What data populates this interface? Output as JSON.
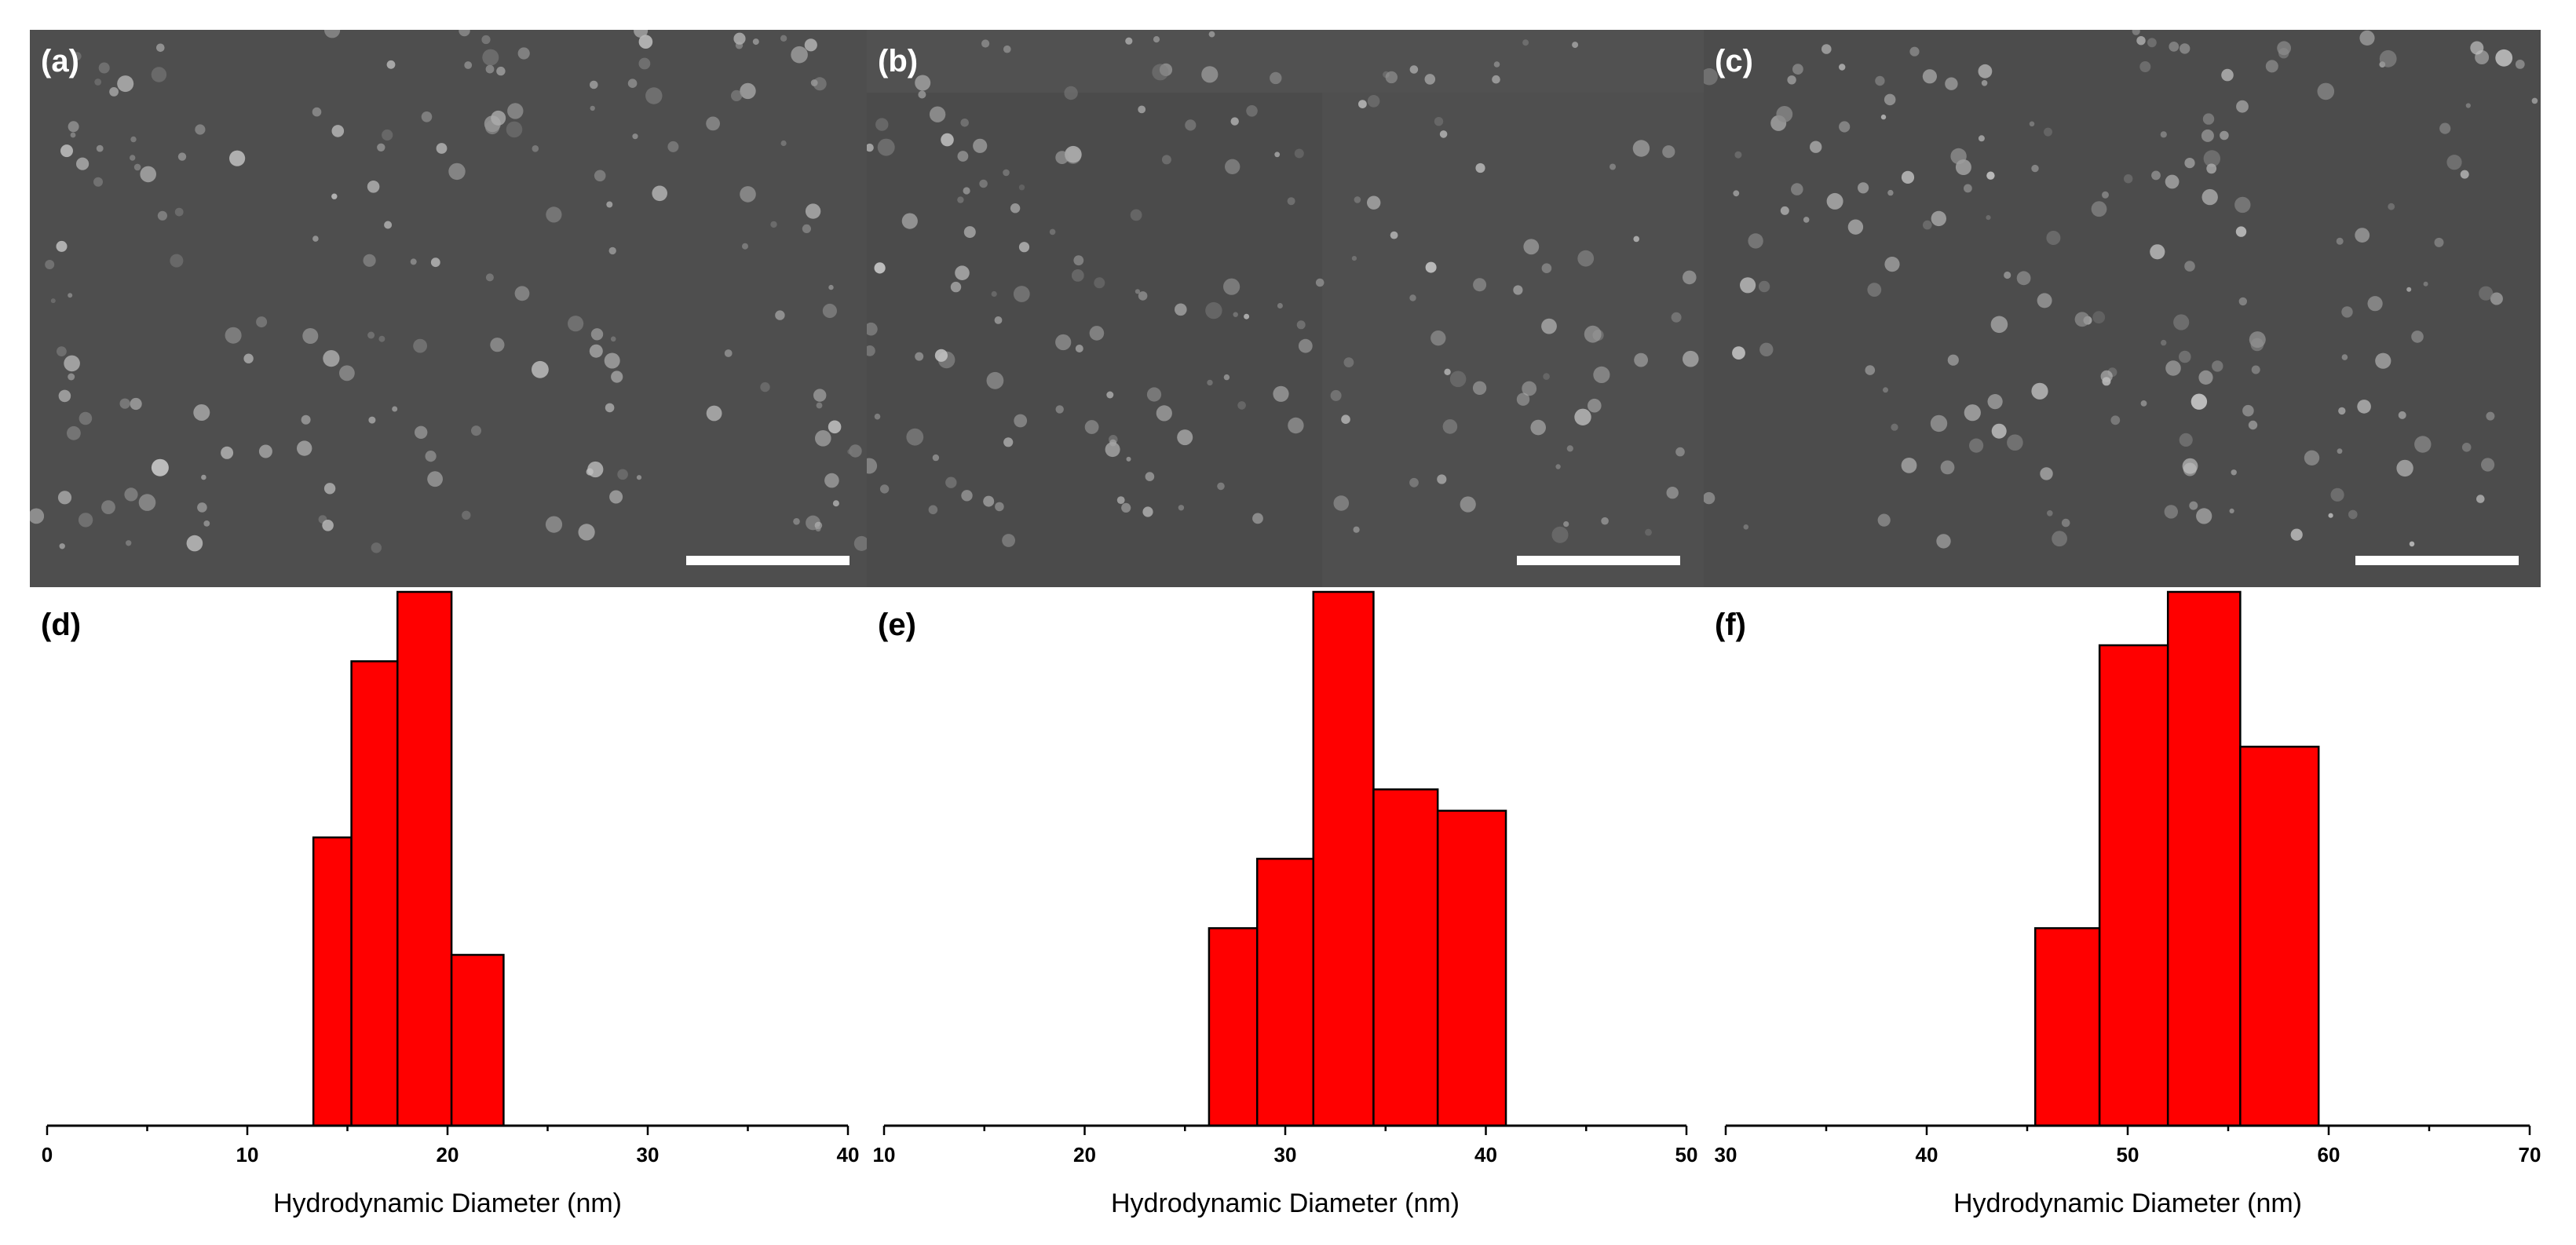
{
  "sem_panels": [
    {
      "label": "(a)"
    },
    {
      "label": "(b)"
    },
    {
      "label": "(c)"
    }
  ],
  "chart_data": [
    {
      "label": "(d)",
      "type": "bar",
      "xlabel": "Hydrodynamic Diameter (nm)",
      "xlim": [
        0,
        40
      ],
      "xticks": [
        "0",
        "10",
        "20",
        "30",
        "40"
      ],
      "bar_color": "#ff0000",
      "bins": [
        {
          "x0": 13.3,
          "x1": 15.2,
          "value": 0.54
        },
        {
          "x0": 15.2,
          "x1": 17.5,
          "value": 0.87
        },
        {
          "x0": 17.5,
          "x1": 20.2,
          "value": 1.0
        },
        {
          "x0": 20.2,
          "x1": 22.8,
          "value": 0.32
        }
      ]
    },
    {
      "label": "(e)",
      "type": "bar",
      "xlabel": "Hydrodynamic Diameter (nm)",
      "xlim": [
        10,
        50
      ],
      "xticks": [
        "10",
        "20",
        "30",
        "40",
        "50"
      ],
      "bar_color": "#ff0000",
      "bins": [
        {
          "x0": 26.2,
          "x1": 28.6,
          "value": 0.37
        },
        {
          "x0": 28.6,
          "x1": 31.4,
          "value": 0.5
        },
        {
          "x0": 31.4,
          "x1": 34.4,
          "value": 1.0
        },
        {
          "x0": 34.4,
          "x1": 37.6,
          "value": 0.63
        },
        {
          "x0": 37.6,
          "x1": 41.0,
          "value": 0.59
        }
      ]
    },
    {
      "label": "(f)",
      "type": "bar",
      "xlabel": "Hydrodynamic Diameter (nm)",
      "xlim": [
        30,
        70
      ],
      "xticks": [
        "30",
        "40",
        "50",
        "60",
        "70"
      ],
      "bar_color": "#ff0000",
      "bins": [
        {
          "x0": 45.4,
          "x1": 48.6,
          "value": 0.37
        },
        {
          "x0": 48.6,
          "x1": 52.0,
          "value": 0.9
        },
        {
          "x0": 52.0,
          "x1": 55.6,
          "value": 1.0
        },
        {
          "x0": 55.6,
          "x1": 59.5,
          "value": 0.71
        }
      ]
    }
  ]
}
